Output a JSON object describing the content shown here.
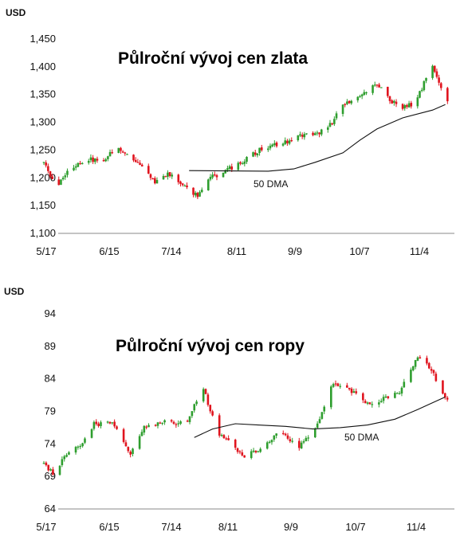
{
  "chart_data": [
    {
      "type": "candlestick",
      "title": "Půlroční vývoj cen zlata",
      "ylabel": "USD",
      "ylim": [
        1100,
        1450
      ],
      "yticks": [
        "1,100",
        "1,150",
        "1,200",
        "1,250",
        "1,300",
        "1,350",
        "1,400",
        "1,450"
      ],
      "xticks": [
        "5/17",
        "6/15",
        "7/14",
        "8/11",
        "9/9",
        "10/7",
        "11/4"
      ],
      "up_color": "#2e9e2e",
      "down_color": "#e0141e",
      "price_path": [
        [
          0,
          1228
        ],
        [
          6,
          1180
        ],
        [
          12,
          1218
        ],
        [
          20,
          1235
        ],
        [
          26,
          1228
        ],
        [
          34,
          1252
        ],
        [
          40,
          1240
        ],
        [
          46,
          1218
        ],
        [
          52,
          1192
        ],
        [
          58,
          1208
        ],
        [
          66,
          1185
        ],
        [
          72,
          1168
        ],
        [
          78,
          1200
        ],
        [
          86,
          1215
        ],
        [
          94,
          1232
        ],
        [
          102,
          1252
        ],
        [
          110,
          1262
        ],
        [
          118,
          1270
        ],
        [
          124,
          1283
        ],
        [
          128,
          1278
        ],
        [
          134,
          1295
        ],
        [
          140,
          1328
        ],
        [
          148,
          1348
        ],
        [
          156,
          1372
        ],
        [
          162,
          1340
        ],
        [
          168,
          1326
        ],
        [
          174,
          1335
        ],
        [
          178,
          1372
        ],
        [
          182,
          1405
        ],
        [
          186,
          1362
        ],
        [
          188,
          1338
        ]
      ],
      "dma": {
        "label": "50 DMA",
        "points": [
          [
            68,
            1213
          ],
          [
            105,
            1212
          ],
          [
            117,
            1216
          ],
          [
            127,
            1228
          ],
          [
            140,
            1245
          ],
          [
            148,
            1268
          ],
          [
            156,
            1288
          ],
          [
            168,
            1308
          ],
          [
            182,
            1322
          ],
          [
            188,
            1332
          ]
        ]
      }
    },
    {
      "type": "candlestick",
      "title": "Půlroční vývoj cen ropy",
      "ylabel": "USD",
      "ylim": [
        64,
        94
      ],
      "yticks": [
        "64",
        "69",
        "74",
        "79",
        "84",
        "89",
        "94"
      ],
      "xticks": [
        "5/17",
        "6/15",
        "7/14",
        "8/11",
        "9/9",
        "10/7",
        "11/4"
      ],
      "up_color": "#2e9e2e",
      "down_color": "#e0141e",
      "price_path": [
        [
          0,
          71
        ],
        [
          4,
          69.5
        ],
        [
          10,
          72.5
        ],
        [
          16,
          73.5
        ],
        [
          22,
          77
        ],
        [
          30,
          77.5
        ],
        [
          38,
          72.5
        ],
        [
          44,
          76.5
        ],
        [
          52,
          77.5
        ],
        [
          62,
          77
        ],
        [
          70,
          82.5
        ],
        [
          76,
          76
        ],
        [
          82,
          74
        ],
        [
          88,
          72
        ],
        [
          96,
          73.5
        ],
        [
          104,
          76
        ],
        [
          112,
          73.5
        ],
        [
          120,
          77
        ],
        [
          126,
          83
        ],
        [
          134,
          82.5
        ],
        [
          142,
          80
        ],
        [
          150,
          81
        ],
        [
          156,
          82
        ],
        [
          162,
          86
        ],
        [
          166,
          88
        ],
        [
          172,
          84
        ],
        [
          176,
          81
        ]
      ],
      "dma": {
        "label": "50 DMA",
        "points": [
          [
            66,
            75
          ],
          [
            74,
            76.3
          ],
          [
            84,
            77.1
          ],
          [
            94,
            76.9
          ],
          [
            106,
            76.7
          ],
          [
            118,
            76.3
          ],
          [
            130,
            76.5
          ],
          [
            142,
            76.9
          ],
          [
            154,
            77.8
          ],
          [
            164,
            79.3
          ],
          [
            176,
            81.2
          ]
        ]
      }
    }
  ]
}
